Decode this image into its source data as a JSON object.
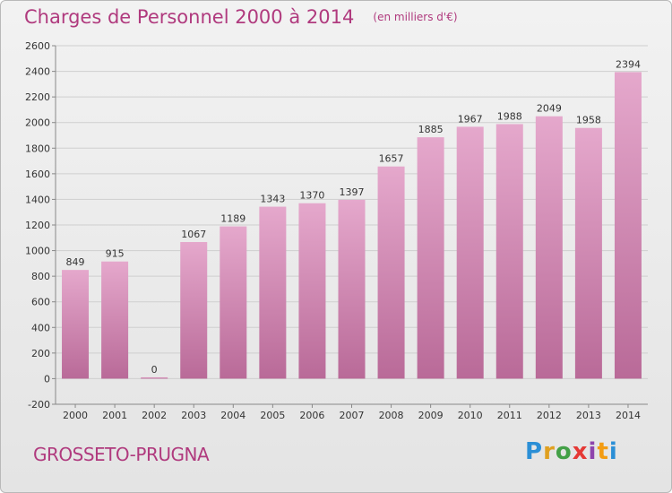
{
  "header": {
    "title": "Charges de Personnel 2000 à 2014",
    "unit": "(en milliers d'€)"
  },
  "footer": {
    "town": "GROSSETO-PRUGNA",
    "logo_text": "Proxiti"
  },
  "colors": {
    "accent": "#b03a7e",
    "bar_top": "#e5a8cc",
    "bar_bottom": "#b96a98"
  },
  "chart_data": {
    "type": "bar",
    "title": "Charges de Personnel 2000 à 2014",
    "subtitle": "(en milliers d'€)",
    "xlabel": "",
    "ylabel": "",
    "categories": [
      "2000",
      "2001",
      "2002",
      "2003",
      "2004",
      "2005",
      "2006",
      "2007",
      "2008",
      "2009",
      "2010",
      "2011",
      "2012",
      "2013",
      "2014"
    ],
    "values": [
      849,
      915,
      0,
      1067,
      1189,
      1343,
      1370,
      1397,
      1657,
      1885,
      1967,
      1988,
      2049,
      1958,
      2394
    ],
    "ylim": [
      -200,
      2600
    ],
    "yticks": [
      -200,
      0,
      200,
      400,
      600,
      800,
      1000,
      1200,
      1400,
      1600,
      1800,
      2000,
      2200,
      2400,
      2600
    ],
    "grid": true,
    "legend": "none"
  }
}
